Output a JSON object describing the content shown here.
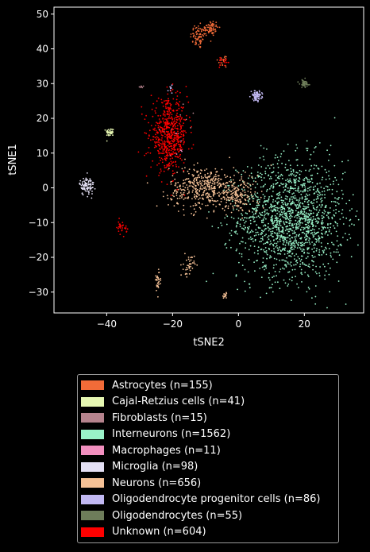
{
  "chart_data": {
    "type": "scatter",
    "title": "",
    "xlabel": "tSNE2",
    "ylabel": "tSNE1",
    "xlim": [
      -56,
      38
    ],
    "ylim": [
      -36,
      52
    ],
    "xticks": [
      -40,
      -20,
      0,
      20
    ],
    "yticks": [
      -30,
      -20,
      -10,
      0,
      10,
      20,
      30,
      40,
      50
    ],
    "grid": false,
    "legend_position": "below",
    "series": [
      {
        "name": "Astrocytes (n=155)",
        "count": 155,
        "color": "#f26b38",
        "clusters": [
          {
            "cx": -12,
            "cy": 43.5,
            "sx": 1.3,
            "sy": 1.8,
            "n": 70
          },
          {
            "cx": -8.5,
            "cy": 46,
            "sx": 1.2,
            "sy": 1.2,
            "n": 65
          },
          {
            "cx": -4.5,
            "cy": 36.5,
            "sx": 0.9,
            "sy": 1.0,
            "n": 20
          }
        ]
      },
      {
        "name": "Cajal-Retzius cells (n=41)",
        "count": 41,
        "color": "#e6f7b2",
        "clusters": [
          {
            "cx": -39,
            "cy": 16,
            "sx": 0.6,
            "sy": 0.6,
            "n": 41
          }
        ]
      },
      {
        "name": "Fibroblasts (n=15)",
        "count": 15,
        "color": "#b5838d",
        "clusters": [
          {
            "cx": -29.5,
            "cy": 29,
            "sx": 0.4,
            "sy": 0.2,
            "n": 6
          },
          {
            "cx": -18,
            "cy": 18,
            "sx": 3,
            "sy": 4,
            "n": 9
          }
        ]
      },
      {
        "name": "Interneurons (n=1562)",
        "count": 1562,
        "color": "#99f2c8",
        "clusters": [
          {
            "cx": 16,
            "cy": -9,
            "sx": 8,
            "sy": 8.5,
            "n": 1562
          }
        ]
      },
      {
        "name": "Macrophages (n=11)",
        "count": 11,
        "color": "#f28fbf",
        "clusters": [
          {
            "cx": -20,
            "cy": 14,
            "sx": 2,
            "sy": 3,
            "n": 11
          }
        ]
      },
      {
        "name": "Microglia (n=98)",
        "count": 98,
        "color": "#e4e0f5",
        "clusters": [
          {
            "cx": -46,
            "cy": 0.5,
            "sx": 1.1,
            "sy": 1.3,
            "n": 98
          }
        ]
      },
      {
        "name": "Neurons (n=656)",
        "count": 656,
        "color": "#f5c196",
        "clusters": [
          {
            "cx": -10,
            "cy": 0,
            "sx": 5.5,
            "sy": 3,
            "n": 440
          },
          {
            "cx": 0,
            "cy": -2.5,
            "sx": 3,
            "sy": 2.5,
            "n": 130
          },
          {
            "cx": -15,
            "cy": -22.5,
            "sx": 0.8,
            "sy": 1.5,
            "n": 40
          },
          {
            "cx": -24.5,
            "cy": -27,
            "sx": 0.5,
            "sy": 1.8,
            "n": 30
          },
          {
            "cx": -4,
            "cy": -31,
            "sx": 0.5,
            "sy": 0.4,
            "n": 16
          }
        ]
      },
      {
        "name": "Oligodendrocyte progenitor cells (n=86)",
        "count": 86,
        "color": "#c1b8f2",
        "clusters": [
          {
            "cx": 5.5,
            "cy": 26.5,
            "sx": 0.8,
            "sy": 0.7,
            "n": 78
          },
          {
            "cx": -20.5,
            "cy": 28.5,
            "sx": 0.4,
            "sy": 0.6,
            "n": 8
          }
        ]
      },
      {
        "name": "Oligodendrocytes (n=55)",
        "count": 55,
        "color": "#6e7d5a",
        "clusters": [
          {
            "cx": 20,
            "cy": 30,
            "sx": 0.7,
            "sy": 0.6,
            "n": 55
          }
        ]
      },
      {
        "name": "Unknown (n=604)",
        "count": 604,
        "color": "#ff0000",
        "clusters": [
          {
            "cx": -21,
            "cy": 15,
            "sx": 2.8,
            "sy": 5,
            "n": 560
          },
          {
            "cx": -35.5,
            "cy": -11.5,
            "sx": 0.8,
            "sy": 0.9,
            "n": 30
          },
          {
            "cx": -4.5,
            "cy": 36,
            "sx": 0.8,
            "sy": 0.8,
            "n": 14
          }
        ]
      }
    ]
  }
}
